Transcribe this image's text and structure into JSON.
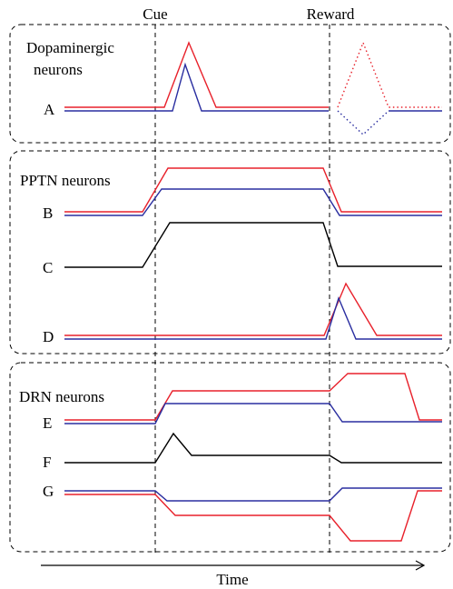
{
  "events": {
    "cue": "Cue",
    "reward": "Reward"
  },
  "time_label": "Time",
  "panels": {
    "dopaminergic": {
      "title_line1": "Dopaminergic",
      "title_line2": "neurons"
    },
    "pptn": {
      "title": "PPTN neurons"
    },
    "drn": {
      "title": "DRN neurons"
    }
  },
  "row_labels": {
    "A": "A",
    "B": "B",
    "C": "C",
    "D": "D",
    "E": "E",
    "F": "F",
    "G": "G"
  },
  "colors": {
    "red": "#e8212b",
    "blue": "#2a2ea0",
    "black": "#000000"
  }
}
